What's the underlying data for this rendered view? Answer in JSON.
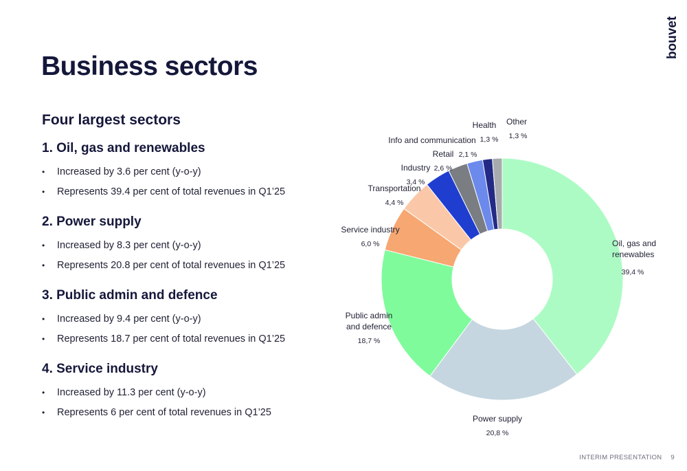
{
  "brand": {
    "logo_text": "bouvet"
  },
  "page": {
    "title": "Business sectors"
  },
  "content": {
    "subtitle": "Four largest sectors",
    "sectors": [
      {
        "title": "1. Oil, gas and renewables",
        "bullets": [
          "Increased by 3.6 per cent (y-o-y)",
          "Represents 39.4 per cent of total revenues in Q1’25"
        ]
      },
      {
        "title": "2. Power supply",
        "bullets": [
          "Increased by 8.3 per cent (y-o-y)",
          "Represents 20.8 per cent of total revenues in Q1’25"
        ]
      },
      {
        "title": "3. Public admin and defence",
        "bullets": [
          "Increased by 9.4 per cent (y-o-y)",
          "Represents 18.7 per cent of total revenues in Q1’25"
        ]
      },
      {
        "title": "4. Service industry",
        "bullets": [
          "Increased by 11.3 per cent (y-o-y)",
          "Represents 6 per cent of total revenues in Q1’25"
        ]
      }
    ]
  },
  "chart_data": {
    "type": "pie",
    "style": "donut",
    "start": "top",
    "direction": "clockwise",
    "labels": [
      "Oil, gas and renewables",
      "Power supply",
      "Public admin and defence",
      "Service industry",
      "Transportation",
      "Industry",
      "Retail",
      "Info and communication",
      "Health",
      "Other"
    ],
    "label_lines": [
      [
        "Oil, gas and",
        "renewables"
      ],
      [
        "Power supply"
      ],
      [
        "Public admin",
        "and defence"
      ],
      [
        "Service industry"
      ],
      [
        "Transportation"
      ],
      [
        "Industry"
      ],
      [
        "Retail"
      ],
      [
        "Info and communication"
      ],
      [
        "Health"
      ],
      [
        "Other"
      ]
    ],
    "values": [
      39.4,
      20.8,
      18.7,
      6.0,
      4.4,
      3.4,
      2.6,
      2.1,
      1.3,
      1.3
    ],
    "value_labels": [
      "39,4 %",
      "20,8 %",
      "18,7 %",
      "6,0 %",
      "4,4 %",
      "3,4 %",
      "2,6 %",
      "2,1 %",
      "1,3 %",
      "1,3 %"
    ],
    "colors": [
      "#adfbc4",
      "#c5d6e0",
      "#7ffb9c",
      "#f7a771",
      "#fac8a9",
      "#1f3ed0",
      "#7a7d82",
      "#6c89ec",
      "#232a86",
      "#a8abad"
    ],
    "legend": "none"
  },
  "footer": {
    "label": "INTERIM PRESENTATION",
    "page_number": "9"
  }
}
